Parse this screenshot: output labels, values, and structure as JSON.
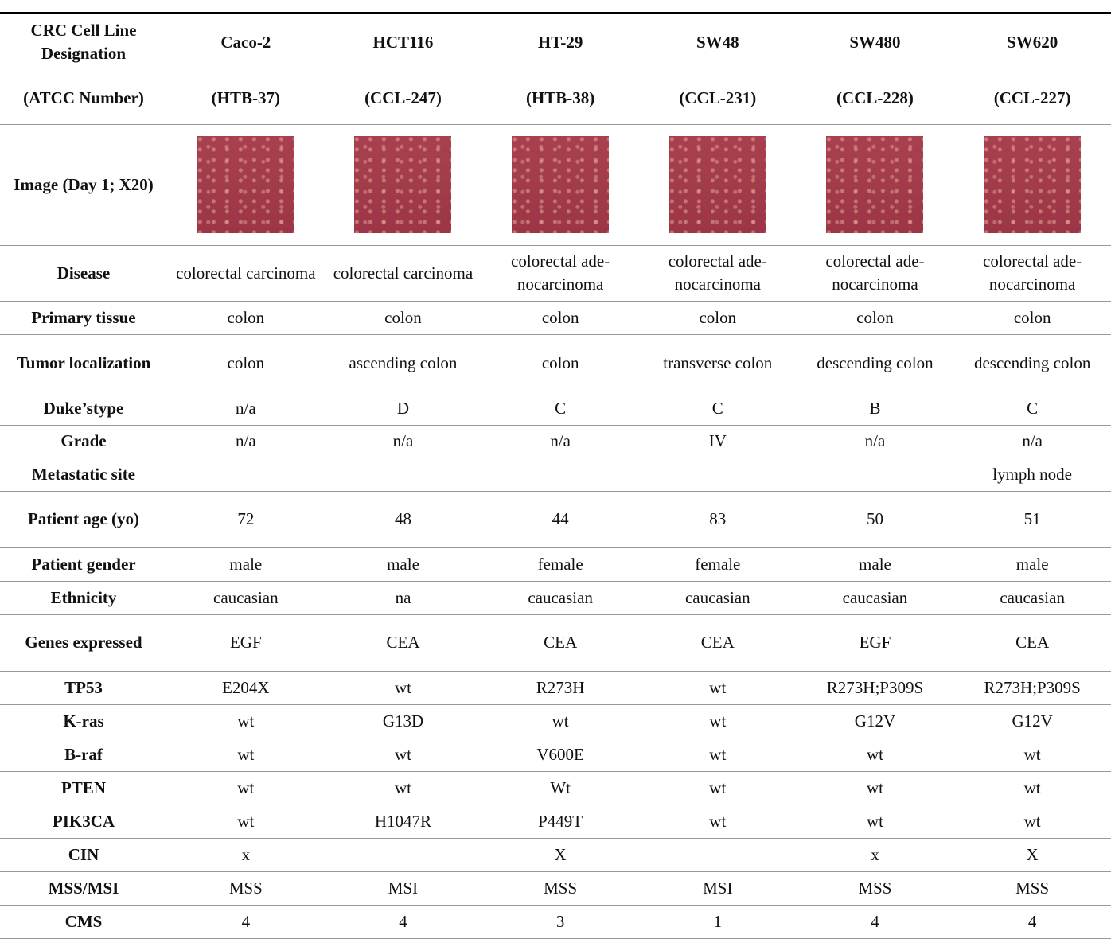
{
  "table": {
    "header": [
      "CRC Cell Line Designation",
      "Caco-2",
      "HCT116",
      "HT-29",
      "SW48",
      "SW480",
      "SW620"
    ],
    "subheader": [
      "(ATCC Number)",
      "(HTB-37)",
      "(CCL-247)",
      "(HTB-38)",
      "(CCL-231)",
      "(CCL-228)",
      "(CCL-227)"
    ],
    "image_row_label": "Image (Day 1; X20)",
    "rows": [
      [
        "Disease",
        "colorectal carcinoma",
        "colorectal carcinoma",
        "colorectal ade-nocarcinoma",
        "colorectal ade-nocarcinoma",
        "colorectal ade-nocarcinoma",
        "colorectal ade-nocarcinoma"
      ],
      [
        "Primary tissue",
        "colon",
        "colon",
        "colon",
        "colon",
        "colon",
        "colon"
      ],
      [
        "Tumor localization",
        "colon",
        "ascending colon",
        "colon",
        "transverse colon",
        "descending colon",
        "descending colon"
      ],
      [
        "Duke’stype",
        "n/a",
        "D",
        "C",
        "C",
        "B",
        "C"
      ],
      [
        "Grade",
        "n/a",
        "n/a",
        "n/a",
        "IV",
        "n/a",
        "n/a"
      ],
      [
        "Metastatic site",
        null,
        null,
        null,
        null,
        null,
        "lymph node"
      ],
      [
        "Patient age (yo)",
        "72",
        "48",
        "44",
        "83",
        "50",
        "51"
      ],
      [
        "Patient gender",
        "male",
        "male",
        "female",
        "female",
        "male",
        "male"
      ],
      [
        "Ethnicity",
        "caucasian",
        "na",
        "caucasian",
        "caucasian",
        "caucasian",
        "caucasian"
      ],
      [
        "Genes expressed",
        "EGF",
        "CEA",
        "CEA",
        "CEA",
        "EGF",
        "CEA"
      ],
      [
        "TP53",
        "E204X",
        "wt",
        "R273H",
        "wt",
        "R273H;P309S",
        "R273H;P309S"
      ],
      [
        "K-ras",
        "wt",
        "G13D",
        "wt",
        "wt",
        "G12V",
        "G12V"
      ],
      [
        "B-raf",
        "wt",
        "wt",
        "V600E",
        "wt",
        "wt",
        "wt"
      ],
      [
        "PTEN",
        "wt",
        "wt",
        "Wt",
        "wt",
        "wt",
        "wt"
      ],
      [
        "PIK3CA",
        "wt",
        "H1047R",
        "P449T",
        "wt",
        "wt",
        "wt"
      ],
      [
        "CIN",
        "x",
        null,
        "X",
        null,
        "x",
        "X"
      ],
      [
        "MSS/MSI",
        "MSS",
        "MSI",
        "MSS",
        "MSI",
        "MSS",
        "MSS"
      ],
      [
        "CMS",
        "4",
        "4",
        "3",
        "1",
        "4",
        "4"
      ]
    ]
  }
}
